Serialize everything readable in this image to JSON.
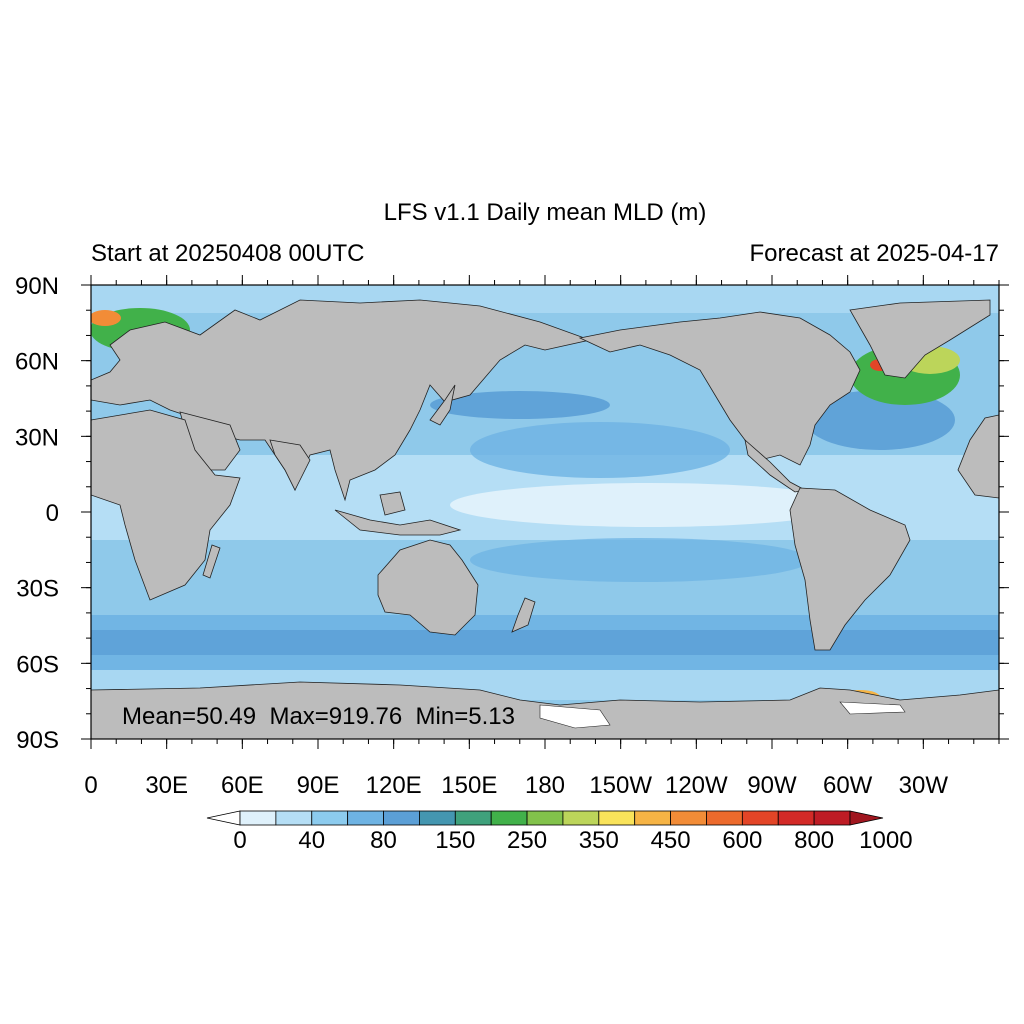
{
  "title": "LFS v1.1 Daily mean MLD (m)",
  "left_subtitle": "Start at 20250408 00UTC",
  "right_subtitle": "Forecast at 2025-04-17",
  "stats_text": "Mean=50.49  Max=919.76  Min=5.13",
  "lat_labels": [
    "90N",
    "60N",
    "30N",
    "0",
    "30S",
    "60S",
    "90S"
  ],
  "lon_labels": [
    "0",
    "30E",
    "60E",
    "90E",
    "120E",
    "150E",
    "180",
    "150W",
    "120W",
    "90W",
    "60W",
    "30W"
  ],
  "colors": {
    "land": "#bcbcbc",
    "ice": "#ffffff",
    "ocean_base": "#8fc9ea"
  },
  "colorbar": {
    "labels": [
      "0",
      "40",
      "80",
      "150",
      "250",
      "350",
      "450",
      "600",
      "800",
      "1000"
    ],
    "colors": [
      "#ffffff",
      "#dff1fb",
      "#b5def5",
      "#8ccbee",
      "#6eb3e3",
      "#5b9fd6",
      "#4496b0",
      "#3fa17c",
      "#41b14a",
      "#82c24b",
      "#bcd55a",
      "#f9e35a",
      "#f6b445",
      "#f28c37",
      "#ec6a2c",
      "#e34527",
      "#d32a27",
      "#be1c25",
      "#a0161f"
    ]
  },
  "chart_data": {
    "type": "heatmap",
    "title": "LFS v1.1 Daily mean MLD (m)",
    "variable_units": "m",
    "xlim": [
      0,
      360
    ],
    "ylim": [
      -90,
      90
    ],
    "x_ticks": [
      0,
      30,
      60,
      90,
      120,
      150,
      180,
      210,
      240,
      270,
      300,
      330
    ],
    "y_ticks": [
      90,
      60,
      30,
      0,
      -30,
      -60,
      -90
    ],
    "levels": [
      0,
      40,
      80,
      150,
      250,
      350,
      450,
      600,
      800,
      1000
    ],
    "stats": {
      "mean": 50.49,
      "max": 919.76,
      "min": 5.13
    }
  }
}
